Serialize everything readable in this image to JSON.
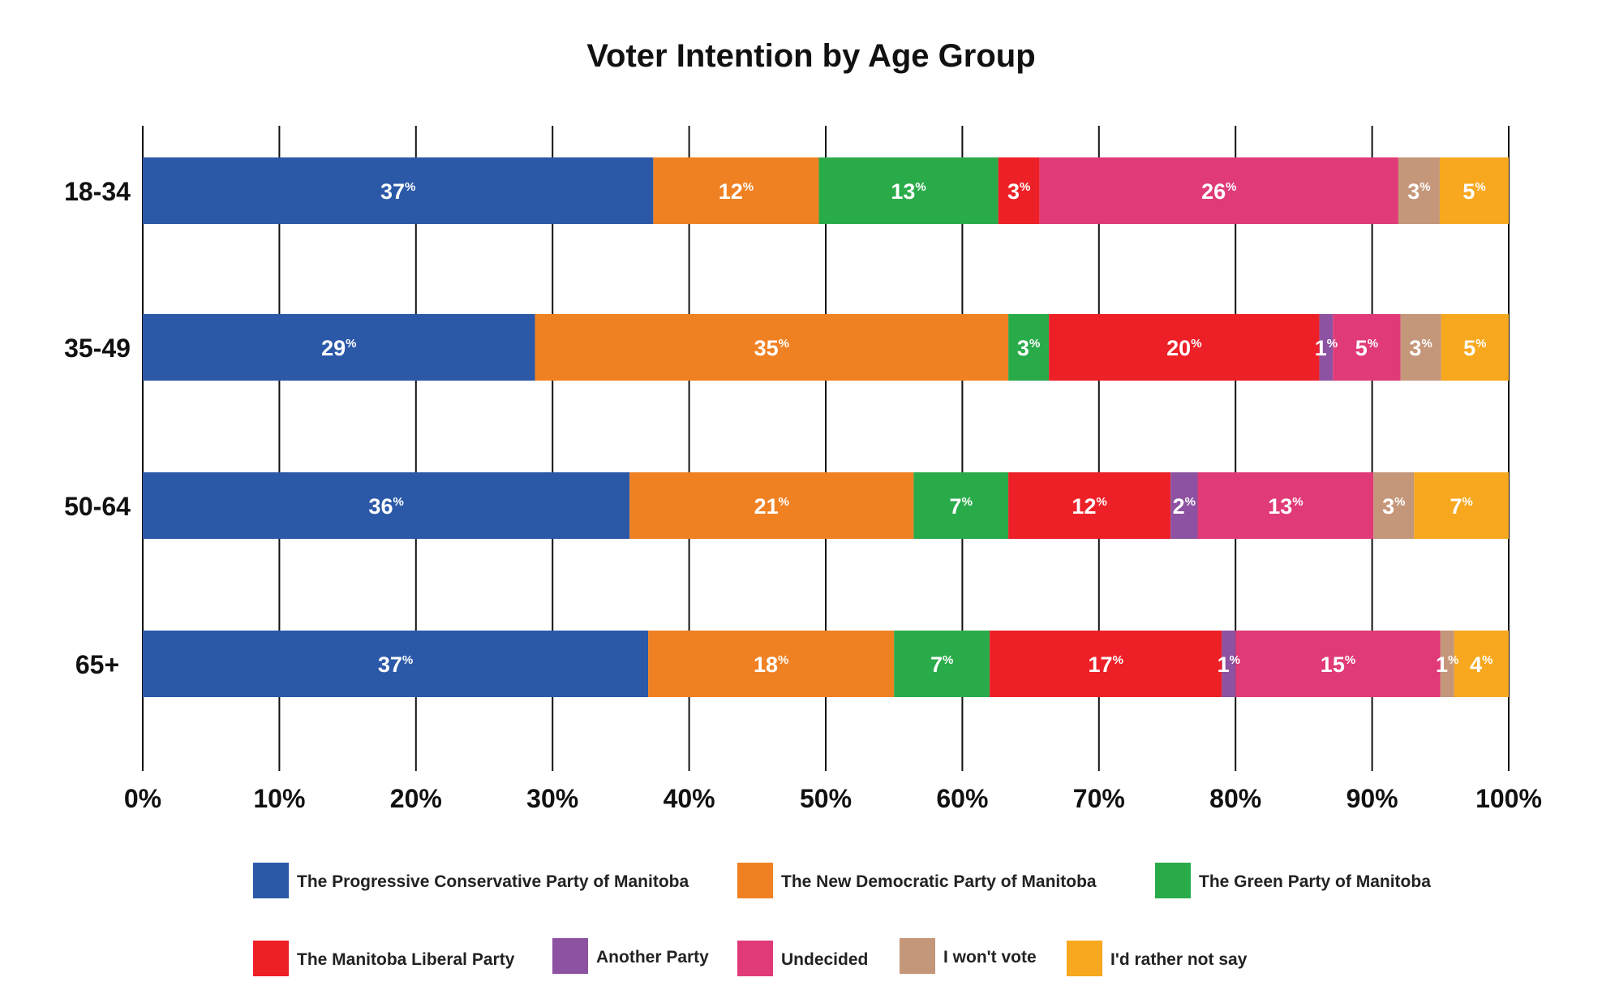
{
  "chart_data": {
    "type": "bar",
    "orientation": "horizontal",
    "stacked": true,
    "title": "Voter Intention by Age Group",
    "xlabel": "",
    "ylabel": "",
    "xlim": [
      0,
      100
    ],
    "x_ticks": [
      "0%",
      "10%",
      "20%",
      "30%",
      "40%",
      "50%",
      "60%",
      "70%",
      "80%",
      "90%",
      "100%"
    ],
    "grid": true,
    "legend_position": "bottom",
    "categories": [
      "18-34",
      "35-49",
      "50-64",
      "65+"
    ],
    "series": [
      {
        "name": "The Progressive Conservative Party of Manitoba",
        "color": "#2b59a8",
        "values": [
          37,
          29,
          36,
          37
        ],
        "labels": [
          "37",
          "29",
          "36",
          "37"
        ]
      },
      {
        "name": "The New Democratic Party of Manitoba",
        "color": "#f08123",
        "values": [
          12,
          35,
          21,
          18
        ],
        "labels": [
          "12",
          "35",
          "21",
          "18"
        ]
      },
      {
        "name": "The Green Party of Manitoba",
        "color": "#2aab4a",
        "values": [
          13,
          3,
          7,
          7
        ],
        "labels": [
          "13",
          "3",
          "7",
          "7"
        ]
      },
      {
        "name": "The Manitoba Liberal Party",
        "color": "#ed2027",
        "values": [
          3,
          20,
          12,
          17
        ],
        "labels": [
          "3",
          "20",
          "12",
          "17"
        ]
      },
      {
        "name": "Another Party",
        "color": "#8d52a1",
        "values": [
          0,
          1,
          2,
          1
        ],
        "labels": [
          "",
          "1",
          "2",
          "1"
        ]
      },
      {
        "name": "Undecided",
        "color": "#e03a78",
        "values": [
          26,
          5,
          13,
          15
        ],
        "labels": [
          "26",
          "5",
          "13",
          "15"
        ]
      },
      {
        "name": "I won't vote",
        "color": "#c4967a",
        "values": [
          3,
          3,
          3,
          1
        ],
        "labels": [
          "3",
          "3",
          "3",
          "1"
        ]
      },
      {
        "name": "I'd rather not say",
        "color": "#f7a81e",
        "values": [
          5,
          5,
          7,
          4
        ],
        "labels": [
          "5",
          "5",
          "7",
          "4"
        ]
      }
    ],
    "percent_sign": "%"
  }
}
